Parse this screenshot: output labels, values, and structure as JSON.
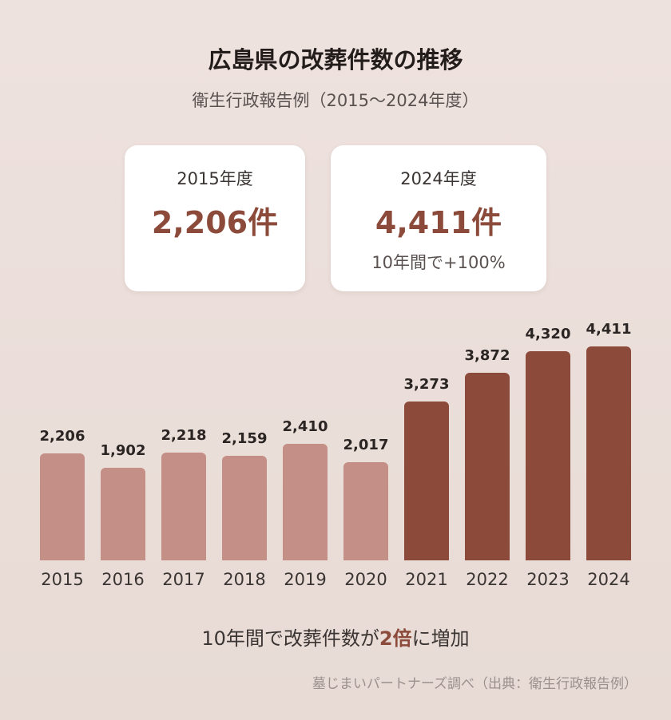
{
  "header": {
    "title": "広島県の改葬件数の推移",
    "subtitle": "衛生行政報告例（2015～2024年度）"
  },
  "cards": [
    {
      "label": "2015年度",
      "value": "2,206件"
    },
    {
      "label": "2024年度",
      "value": "4,411件",
      "note": "10年間で+100%"
    }
  ],
  "chart_data": {
    "type": "bar",
    "categories": [
      "2015",
      "2016",
      "2017",
      "2018",
      "2019",
      "2020",
      "2021",
      "2022",
      "2023",
      "2024"
    ],
    "values": [
      2206,
      1902,
      2218,
      2159,
      2410,
      2017,
      3273,
      3872,
      4320,
      4411
    ],
    "value_labels": [
      "2,206",
      "1,902",
      "2,218",
      "2,159",
      "2,410",
      "2,017",
      "3,273",
      "3,872",
      "4,320",
      "4,411"
    ],
    "ylim": [
      0,
      4411
    ],
    "colors": {
      "before_2021": "#c48f86",
      "from_2021": "#8b4a3a"
    },
    "highlight_from": "2021"
  },
  "summary": {
    "prefix": "10年間で改葬件数が",
    "emphasis": "2倍",
    "suffix": "に増加"
  },
  "source": "墓じまいパートナーズ調べ（出典：衛生行政報告例）"
}
